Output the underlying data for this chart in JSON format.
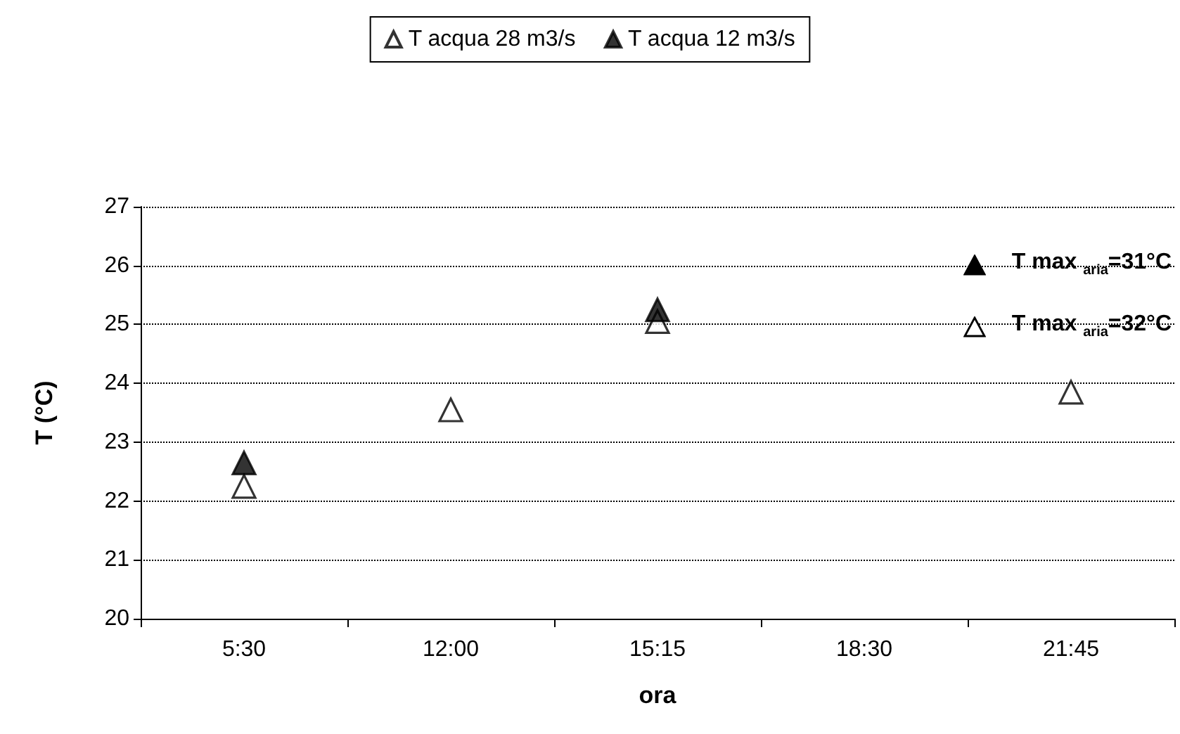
{
  "chart_data": {
    "type": "scatter",
    "xlabel": "ora",
    "ylabel": "T (°C)",
    "categories": [
      "5:30",
      "12:00",
      "15:15",
      "18:30",
      "21:45"
    ],
    "series": [
      {
        "name": "T acqua 28 m3/s",
        "color": "#ffffff",
        "values": [
          22.2,
          23.5,
          25.0,
          null,
          23.8
        ]
      },
      {
        "name": "T acqua 12 m3/s",
        "color": "#000000",
        "values": [
          22.6,
          null,
          25.2,
          null,
          null
        ]
      }
    ],
    "ylim": [
      20,
      27
    ],
    "yticks": [
      20,
      21,
      22,
      23,
      24,
      25,
      26,
      27
    ],
    "grid": "y",
    "legend": "top",
    "marker": "triangle",
    "annotations": [
      "T max $_{aria}$=31°C",
      "T max $_{aria}$=32°C"
    ]
  }
}
